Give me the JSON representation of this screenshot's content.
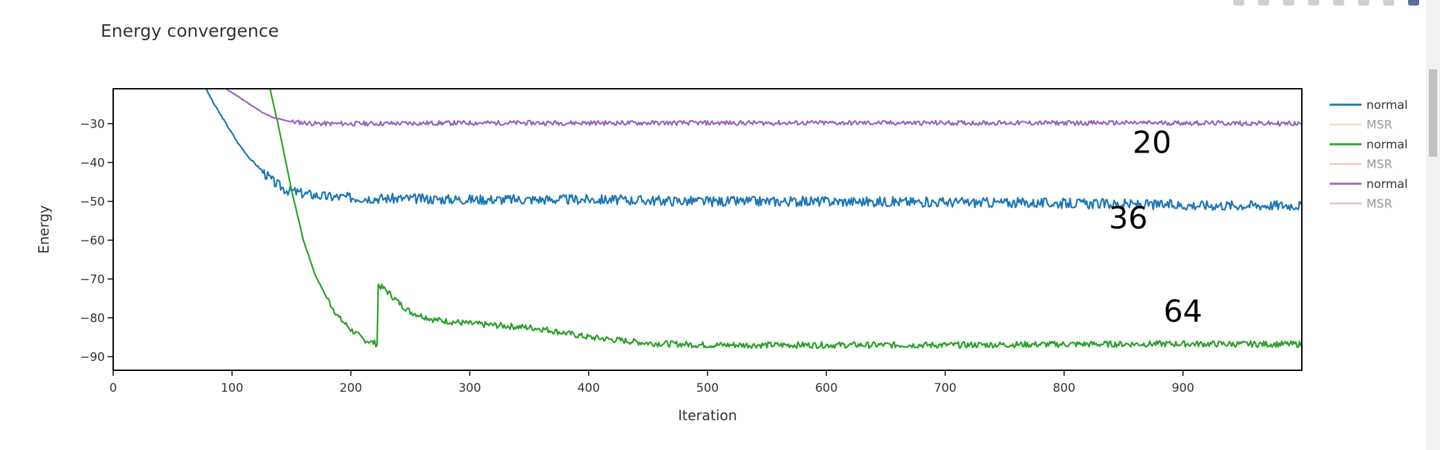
{
  "chart_data": {
    "type": "line",
    "title": "Energy convergence",
    "xlabel": "Iteration",
    "ylabel": "Energy",
    "xlim": [
      0,
      1000
    ],
    "ylim": [
      -93.5,
      -21
    ],
    "xticks": [
      0,
      100,
      200,
      300,
      400,
      500,
      600,
      700,
      800,
      900
    ],
    "yticks": [
      -90,
      -80,
      -70,
      -60,
      -50,
      -40,
      -30
    ],
    "grid": false,
    "legend_position": "right",
    "series": [
      {
        "name": "normal",
        "color": "#1f77b4",
        "visible": true,
        "points": [
          [
            78,
            -21
          ],
          [
            85,
            -25
          ],
          [
            95,
            -30
          ],
          [
            105,
            -35
          ],
          [
            115,
            -39
          ],
          [
            125,
            -42
          ],
          [
            135,
            -45
          ],
          [
            145,
            -47
          ],
          [
            160,
            -48
          ],
          [
            180,
            -48.8
          ],
          [
            220,
            -49.2
          ],
          [
            300,
            -49.5
          ],
          [
            400,
            -49.5
          ],
          [
            500,
            -50
          ],
          [
            600,
            -50
          ],
          [
            700,
            -50.2
          ],
          [
            800,
            -50.5
          ],
          [
            900,
            -51
          ],
          [
            1000,
            -51
          ]
        ],
        "noise": 1.3,
        "seed": 3
      },
      {
        "name": "MSR",
        "color": "#ffbb78",
        "visible": false
      },
      {
        "name": "normal",
        "color": "#2ca02c",
        "visible": true,
        "points": [
          [
            132,
            -21
          ],
          [
            140,
            -32
          ],
          [
            150,
            -47
          ],
          [
            160,
            -60
          ],
          [
            170,
            -69
          ],
          [
            180,
            -75
          ],
          [
            190,
            -80
          ],
          [
            200,
            -83
          ],
          [
            210,
            -85.5
          ],
          [
            220,
            -86.5
          ],
          [
            222,
            -86.8
          ],
          [
            223,
            -71.5
          ],
          [
            230,
            -73
          ],
          [
            240,
            -76
          ],
          [
            250,
            -78.5
          ],
          [
            270,
            -80.5
          ],
          [
            300,
            -81.5
          ],
          [
            350,
            -82.5
          ],
          [
            360,
            -82.8
          ],
          [
            400,
            -85
          ],
          [
            450,
            -86.5
          ],
          [
            500,
            -87
          ],
          [
            600,
            -87
          ],
          [
            700,
            -87
          ],
          [
            800,
            -86.8
          ],
          [
            900,
            -86.7
          ],
          [
            1000,
            -86.8
          ]
        ],
        "noise": 0.8,
        "seed": 7
      },
      {
        "name": "MSR",
        "color": "#ff9896",
        "visible": false
      },
      {
        "name": "normal",
        "color": "#9467bd",
        "visible": true,
        "points": [
          [
            95,
            -21
          ],
          [
            105,
            -23
          ],
          [
            115,
            -25
          ],
          [
            125,
            -27
          ],
          [
            135,
            -28.5
          ],
          [
            150,
            -29.5
          ],
          [
            170,
            -30
          ],
          [
            200,
            -30
          ],
          [
            300,
            -29.8
          ],
          [
            400,
            -29.8
          ],
          [
            500,
            -29.8
          ],
          [
            600,
            -29.8
          ],
          [
            700,
            -29.8
          ],
          [
            800,
            -29.8
          ],
          [
            900,
            -29.8
          ],
          [
            1000,
            -30
          ]
        ],
        "noise": 0.6,
        "seed": 11
      },
      {
        "name": "MSR",
        "color": "#c49c94",
        "visible": false
      }
    ],
    "annotations": [
      {
        "text": "20",
        "x": 874,
        "y": -37.5
      },
      {
        "text": "36",
        "x": 854,
        "y": -57
      },
      {
        "text": "64",
        "x": 900,
        "y": -81
      }
    ]
  }
}
